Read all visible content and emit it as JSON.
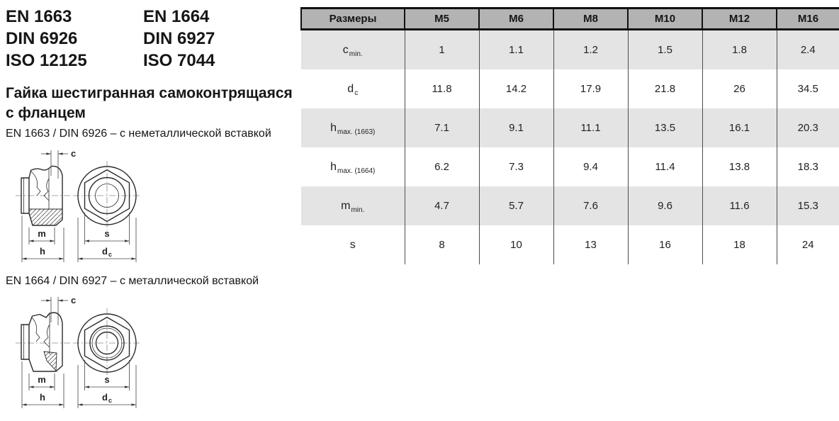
{
  "standards": {
    "col1": [
      "EN 1663",
      "DIN 6926",
      "ISO 12125"
    ],
    "col2": [
      "EN 1664",
      "DIN 6927",
      "ISO 7044"
    ]
  },
  "title": {
    "line1": "Гайка шестигранная самоконтрящаяся",
    "line2": "с фланцем",
    "full": "Гайка шестигранная самоконтрящаяся с фланцем"
  },
  "variants": {
    "v1": "EN 1663 / DIN 6926 – с неметаллической вставкой",
    "v2": "EN 1664 / DIN 6927 – с металлической вставкой"
  },
  "drawings": {
    "labels": {
      "c": "c",
      "m": "m",
      "h": "h",
      "s": "s",
      "d_main": "d",
      "d_sub": "c"
    }
  },
  "table": {
    "columns": [
      "Размеры",
      "M5",
      "M6",
      "M8",
      "M10",
      "M12",
      "M16"
    ],
    "rows": [
      {
        "label": "c",
        "sub": "min.",
        "values": [
          "1",
          "1.1",
          "1.2",
          "1.5",
          "1.8",
          "2.4"
        ]
      },
      {
        "label": "d",
        "sub": "c",
        "values": [
          "11.8",
          "14.2",
          "17.9",
          "21.8",
          "26",
          "34.5"
        ]
      },
      {
        "label": "h",
        "sub": "max. (1663)",
        "values": [
          "7.1",
          "9.1",
          "11.1",
          "13.5",
          "16.1",
          "20.3"
        ]
      },
      {
        "label": "h",
        "sub": "max. (1664)",
        "values": [
          "6.2",
          "7.3",
          "9.4",
          "11.4",
          "13.8",
          "18.3"
        ]
      },
      {
        "label": "m",
        "sub": "min.",
        "values": [
          "4.7",
          "5.7",
          "7.6",
          "9.6",
          "11.6",
          "15.3"
        ]
      },
      {
        "label": "s",
        "sub": "",
        "values": [
          "8",
          "10",
          "13",
          "16",
          "18",
          "24"
        ]
      }
    ],
    "colors": {
      "header_bg": "#b3b3b3",
      "band_bg": "#e4e4e4",
      "border": "#111111",
      "divider": "#4d4d4d"
    }
  }
}
